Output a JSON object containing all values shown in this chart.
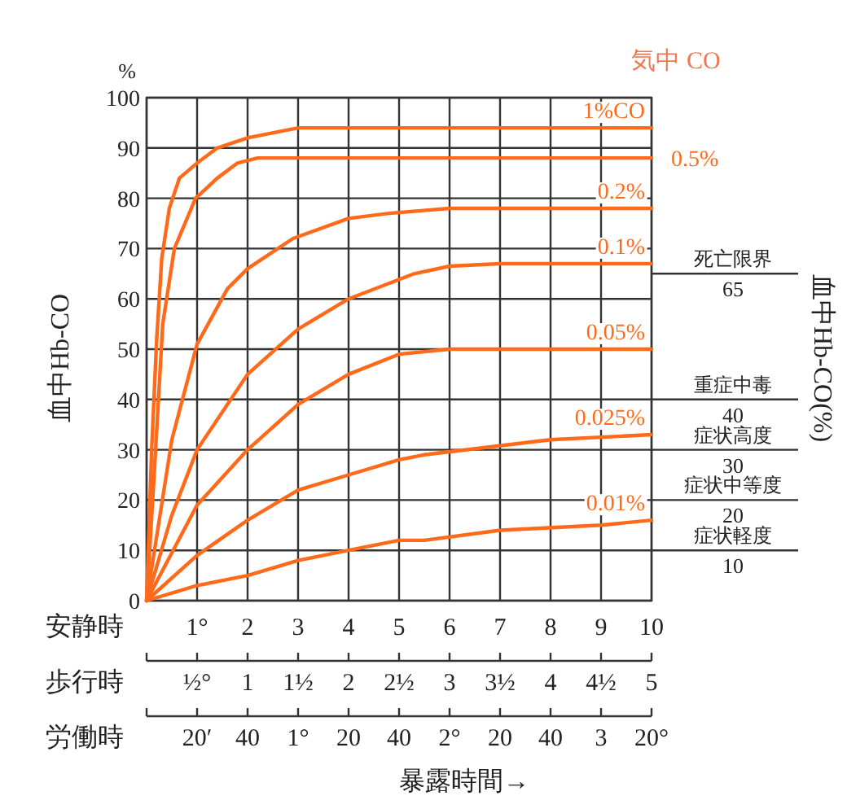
{
  "chart_data": {
    "type": "line",
    "xlabel": "安静時",
    "x2label": "歩行時",
    "ylabel": "血中Hb-CO",
    "y2label": "血中Hb-CO(%)",
    "legend_title": "気中 CO",
    "annotations": [
      "%",
      "暴露時間→",
      "労働時",
      "20′",
      "40",
      "1°",
      "20",
      "40",
      "2°",
      "20",
      "40",
      "3",
      "20°"
    ],
    "xlim": [
      0,
      10
    ],
    "xticks": [
      {
        "value": 1,
        "label": "1°"
      },
      2,
      3,
      4,
      5,
      6,
      7,
      8,
      9,
      10
    ],
    "x2lim": [
      0,
      5
    ],
    "x2ticks": [
      {
        "value": 0.5,
        "label": "½°"
      },
      1,
      {
        "value": 1.5,
        "label": "1½"
      },
      2,
      {
        "value": 2.5,
        "label": "2½"
      },
      3,
      {
        "value": 3.5,
        "label": "3½"
      },
      4,
      {
        "value": 4.5,
        "label": "4½"
      },
      5
    ],
    "ylim": [
      0,
      100
    ],
    "yticks": [
      0,
      10,
      20,
      30,
      40,
      50,
      60,
      70,
      80,
      90,
      100
    ],
    "grid": true,
    "y2lim": [
      0,
      100
    ],
    "y2ticks": [
      10,
      20,
      30,
      40,
      65
    ],
    "series": [
      {
        "name": "1%CO",
        "color": "#ff6a1a",
        "x": [
          0,
          0.1,
          0.2,
          0.3,
          0.45,
          0.65,
          1,
          1.4,
          2,
          3,
          10
        ],
        "values": [
          0,
          30,
          52,
          68,
          78,
          84,
          87,
          90,
          92,
          94,
          94
        ]
      },
      {
        "name": "0.5%",
        "color": "#ff6a1a",
        "x": [
          0,
          0.15,
          0.32,
          0.55,
          0.97,
          1.4,
          1.8,
          2.2,
          10
        ],
        "values": [
          0,
          25,
          55,
          70,
          80,
          84,
          87,
          88,
          88
        ]
      },
      {
        "name": "0.2%",
        "color": "#ff6a1a",
        "x": [
          0,
          0.5,
          1,
          1.6,
          2,
          2.9,
          4,
          4.8,
          6,
          10
        ],
        "values": [
          0,
          32,
          51,
          62,
          66,
          72,
          76,
          77,
          78,
          78
        ]
      },
      {
        "name": "0.1%",
        "color": "#ff6a1a",
        "x": [
          0,
          0.5,
          1,
          2,
          3,
          4,
          5.3,
          6,
          7,
          10
        ],
        "values": [
          0,
          17,
          30,
          45,
          54,
          60,
          65,
          66.5,
          67,
          67
        ]
      },
      {
        "name": "0.05%",
        "color": "#ff6a1a",
        "x": [
          0,
          1,
          2,
          3,
          4,
          5,
          6,
          10
        ],
        "values": [
          0,
          19,
          30,
          39,
          45,
          49,
          50,
          50
        ]
      },
      {
        "name": "0.025%",
        "color": "#ff6a1a",
        "x": [
          0,
          1,
          2,
          3,
          4,
          5,
          5.5,
          8,
          10
        ],
        "values": [
          0,
          9,
          16,
          22,
          25,
          28,
          29,
          32,
          33
        ]
      },
      {
        "name": "0.01%",
        "color": "#ff6a1a",
        "x": [
          0,
          1,
          2,
          3,
          4,
          5,
          5.5,
          7,
          9,
          10
        ],
        "values": [
          0,
          3,
          5,
          8,
          10,
          12,
          12,
          14,
          15,
          16
        ]
      }
    ],
    "ref_lines": [
      {
        "axis": "y",
        "value": 65,
        "label": "死亡限界"
      },
      {
        "axis": "y",
        "value": 40,
        "label": "重症中毒"
      },
      {
        "axis": "y",
        "value": 30,
        "label": "症状高度"
      },
      {
        "axis": "y",
        "value": 20,
        "label": "症状中等度"
      },
      {
        "axis": "y",
        "value": 10,
        "label": "症状軽度"
      }
    ]
  }
}
